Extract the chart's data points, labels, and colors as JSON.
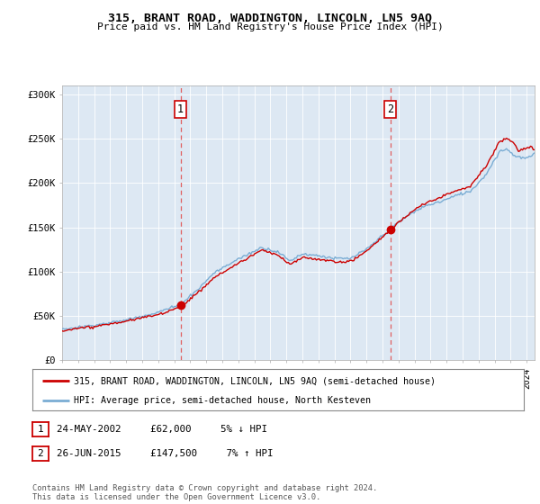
{
  "title": "315, BRANT ROAD, WADDINGTON, LINCOLN, LN5 9AQ",
  "subtitle": "Price paid vs. HM Land Registry's House Price Index (HPI)",
  "ylabel_ticks": [
    "£0",
    "£50K",
    "£100K",
    "£150K",
    "£200K",
    "£250K",
    "£300K"
  ],
  "ytick_vals": [
    0,
    50000,
    100000,
    150000,
    200000,
    250000,
    300000
  ],
  "ylim": [
    0,
    310000
  ],
  "xlim_start": 1995.0,
  "xlim_end": 2024.5,
  "marker1_x": 2002.39,
  "marker1_y": 62000,
  "marker1_label": "1",
  "marker2_x": 2015.49,
  "marker2_y": 147500,
  "marker2_label": "2",
  "dashed_line1_x": 2002.39,
  "dashed_line2_x": 2015.49,
  "legend_line1": "315, BRANT ROAD, WADDINGTON, LINCOLN, LN5 9AQ (semi-detached house)",
  "legend_line2": "HPI: Average price, semi-detached house, North Kesteven",
  "table_row1": [
    "1",
    "24-MAY-2002",
    "£62,000",
    "5% ↓ HPI"
  ],
  "table_row2": [
    "2",
    "26-JUN-2015",
    "£147,500",
    "7% ↑ HPI"
  ],
  "footer": "Contains HM Land Registry data © Crown copyright and database right 2024.\nThis data is licensed under the Open Government Licence v3.0.",
  "color_red": "#cc0000",
  "color_blue": "#7aadd4",
  "color_dashed": "#e06060",
  "background_color": "#dde8f3",
  "plot_bg": "#ffffff"
}
